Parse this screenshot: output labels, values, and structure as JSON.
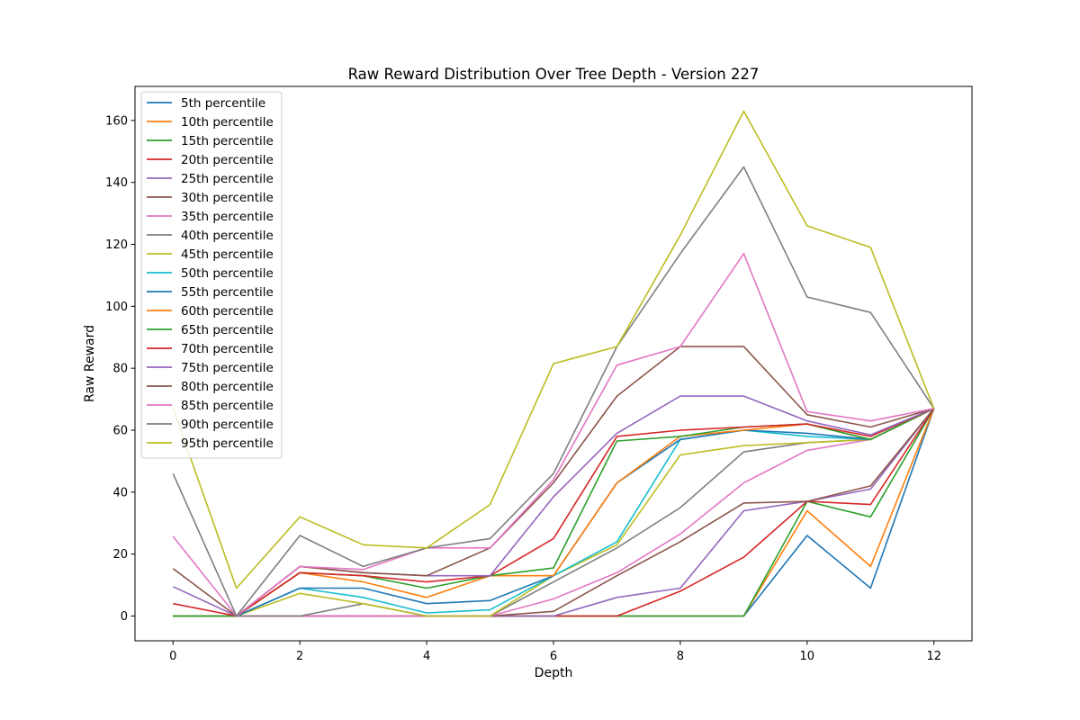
{
  "chart_data": {
    "type": "line",
    "title": "Raw Reward Distribution Over Tree Depth - Version 227",
    "xlabel": "Depth",
    "ylabel": "Raw Reward",
    "xlim": [
      -0.6,
      12.6
    ],
    "ylim": [
      -8,
      171
    ],
    "xticks": [
      0,
      2,
      4,
      6,
      8,
      10,
      12
    ],
    "yticks": [
      0,
      20,
      40,
      60,
      80,
      100,
      120,
      140,
      160
    ],
    "legend_position": "upper-left",
    "grid": false,
    "x": [
      0,
      1,
      2,
      3,
      4,
      5,
      6,
      7,
      8,
      9,
      10,
      11,
      12
    ],
    "series": [
      {
        "name": "5th percentile",
        "color": "#1f77b4",
        "values": [
          0,
          0,
          0,
          0,
          0,
          0,
          0,
          0,
          0,
          0,
          26,
          9,
          67
        ]
      },
      {
        "name": "10th percentile",
        "color": "#ff7f0e",
        "values": [
          0,
          0,
          0,
          0,
          0,
          0,
          0,
          0,
          0,
          0,
          34,
          16,
          67
        ]
      },
      {
        "name": "15th percentile",
        "color": "#2ca02c",
        "values": [
          0,
          0,
          0,
          0,
          0,
          0,
          0,
          0,
          0,
          0,
          37,
          32,
          67
        ]
      },
      {
        "name": "20th percentile",
        "color": "#d62728",
        "values": [
          0,
          0,
          0,
          0,
          0,
          0,
          0,
          0,
          8,
          19,
          37,
          36,
          67
        ]
      },
      {
        "name": "25th percentile",
        "color": "#9467bd",
        "values": [
          0,
          0,
          0,
          0,
          0,
          0,
          0,
          6,
          9,
          34,
          37,
          41,
          67
        ]
      },
      {
        "name": "30th percentile",
        "color": "#8c564b",
        "values": [
          0,
          0,
          0,
          0,
          0,
          0,
          1.5,
          13,
          24,
          36.5,
          37,
          42,
          67
        ]
      },
      {
        "name": "35th percentile",
        "color": "#e377c2",
        "values": [
          0,
          0,
          0,
          0,
          0,
          0,
          5.5,
          14,
          26.5,
          43,
          53.5,
          57,
          67
        ]
      },
      {
        "name": "40th percentile",
        "color": "#7f7f7f",
        "values": [
          0,
          0,
          0,
          4,
          0,
          0,
          11,
          22,
          35,
          53,
          56,
          57,
          67
        ]
      },
      {
        "name": "45th percentile",
        "color": "#bcbd22",
        "values": [
          0,
          0,
          7.3,
          4,
          0,
          0,
          13,
          23,
          52,
          55,
          56,
          57,
          67
        ]
      },
      {
        "name": "50th percentile",
        "color": "#17becf",
        "values": [
          0,
          0,
          9,
          6,
          1,
          2,
          13,
          24,
          57,
          60,
          58,
          57,
          67
        ]
      },
      {
        "name": "55th percentile",
        "color": "#1f77b4",
        "values": [
          0,
          0,
          9,
          9,
          4,
          5,
          13,
          43,
          57,
          60,
          59,
          57,
          67
        ]
      },
      {
        "name": "60th percentile",
        "color": "#ff7f0e",
        "values": [
          0,
          0,
          14,
          11,
          6,
          13,
          13,
          43,
          58,
          60,
          62,
          57,
          67
        ]
      },
      {
        "name": "65th percentile",
        "color": "#2ca02c",
        "values": [
          0,
          0,
          14,
          13,
          9,
          13,
          15.5,
          56.5,
          58,
          61,
          62,
          57,
          67
        ]
      },
      {
        "name": "70th percentile",
        "color": "#d62728",
        "values": [
          4,
          0,
          14,
          13,
          11,
          13,
          25,
          58,
          60,
          61,
          62,
          58,
          67
        ]
      },
      {
        "name": "75th percentile",
        "color": "#9467bd",
        "values": [
          9.5,
          0,
          16,
          14,
          13,
          13,
          38.5,
          59,
          71,
          71,
          63,
          58.5,
          67
        ]
      },
      {
        "name": "80th percentile",
        "color": "#8c564b",
        "values": [
          15.3,
          0,
          16,
          14,
          13,
          22,
          43,
          71,
          87,
          87,
          65,
          61,
          67
        ]
      },
      {
        "name": "85th percentile",
        "color": "#e377c2",
        "values": [
          25.7,
          0,
          16,
          15,
          22,
          22,
          44,
          81,
          87,
          117,
          66,
          63,
          67
        ]
      },
      {
        "name": "90th percentile",
        "color": "#7f7f7f",
        "values": [
          46,
          0,
          26,
          16,
          22,
          25,
          46,
          87,
          117,
          145,
          103,
          98,
          67
        ]
      },
      {
        "name": "95th percentile",
        "color": "#bcbd22",
        "values": [
          67,
          9,
          32,
          23,
          22,
          36,
          81.5,
          87,
          123,
          163,
          126,
          119,
          67
        ]
      }
    ]
  }
}
